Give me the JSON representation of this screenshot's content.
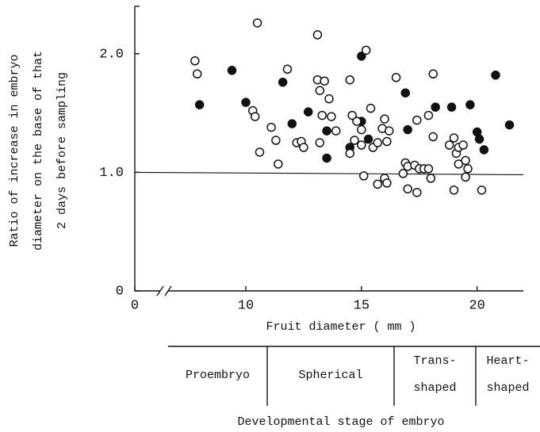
{
  "chart_data": {
    "type": "scatter",
    "y_label": [
      "Ratio of increase in embryo",
      "diameter on the base of that",
      "2 days before sampling"
    ],
    "x_label": "Fruit diameter  ( mm )",
    "xlim": [
      0,
      22
    ],
    "x_axis_break": true,
    "xticks": [
      0,
      10,
      15,
      20
    ],
    "ylim": [
      0,
      2.4
    ],
    "yticks": [
      0,
      {
        "value": 1,
        "label": "1.0"
      },
      {
        "value": 2,
        "label": "2.0"
      }
    ],
    "hline": 1,
    "series": [
      {
        "marker": "filled",
        "color": "#111111",
        "x": [
          9.4,
          8.0,
          10.0,
          11.6,
          12.0,
          12.7,
          13.5,
          13.5,
          14.5,
          15.0,
          15.0,
          15.3,
          16.9,
          17.0,
          18.2,
          18.9,
          19.7,
          20.0,
          20.1,
          20.3,
          20.8,
          21.4
        ],
        "values": [
          1.86,
          1.57,
          1.59,
          1.76,
          1.41,
          1.51,
          1.35,
          1.12,
          1.21,
          1.98,
          1.43,
          1.28,
          1.67,
          1.36,
          1.55,
          1.55,
          1.57,
          1.34,
          1.28,
          1.19,
          1.82,
          1.4
        ]
      },
      {
        "marker": "open",
        "color": "#111111",
        "x": [
          7.8,
          7.9,
          10.3,
          10.4,
          10.5,
          10.6,
          11.1,
          11.3,
          11.4,
          11.8,
          12.2,
          12.4,
          12.5,
          13.1,
          13.1,
          13.2,
          13.3,
          13.2,
          13.4,
          13.6,
          13.7,
          13.9,
          14.5,
          14.5,
          14.6,
          14.7,
          14.8,
          15.0,
          15.0,
          15.1,
          15.2,
          15.4,
          15.5,
          15.7,
          15.7,
          15.9,
          16.0,
          16.0,
          16.1,
          16.2,
          16.1,
          16.5,
          16.8,
          16.9,
          17.0,
          17.0,
          17.3,
          17.4,
          17.4,
          17.5,
          17.7,
          17.9,
          17.9,
          18.0,
          18.1,
          18.1,
          18.8,
          19.0,
          19.0,
          19.1,
          19.2,
          19.2,
          19.4,
          19.5,
          19.5,
          19.6,
          20.2
        ],
        "values": [
          1.94,
          1.83,
          1.52,
          1.47,
          2.26,
          1.17,
          1.38,
          1.27,
          1.07,
          1.87,
          1.25,
          1.26,
          1.21,
          2.16,
          1.78,
          1.69,
          1.48,
          1.25,
          1.77,
          1.62,
          1.47,
          1.35,
          1.78,
          1.16,
          1.48,
          1.27,
          1.43,
          1.36,
          1.23,
          0.97,
          2.03,
          1.54,
          1.21,
          1.25,
          0.9,
          1.37,
          0.95,
          1.45,
          1.26,
          1.35,
          0.91,
          1.8,
          0.99,
          1.08,
          0.86,
          1.05,
          1.06,
          0.83,
          1.44,
          1.03,
          1.03,
          1.03,
          1.48,
          0.95,
          1.83,
          1.3,
          1.23,
          0.85,
          1.29,
          1.16,
          1.07,
          1.21,
          1.23,
          1.1,
          0.96,
          1.03,
          0.85
        ]
      }
    ]
  },
  "stage_table": {
    "stages": [
      [
        "Proembryo"
      ],
      [
        "Spherical"
      ],
      [
        "Trans-",
        "shaped"
      ],
      [
        "Heart-",
        "shaped"
      ]
    ],
    "title": "Developmental stage of embryo"
  }
}
